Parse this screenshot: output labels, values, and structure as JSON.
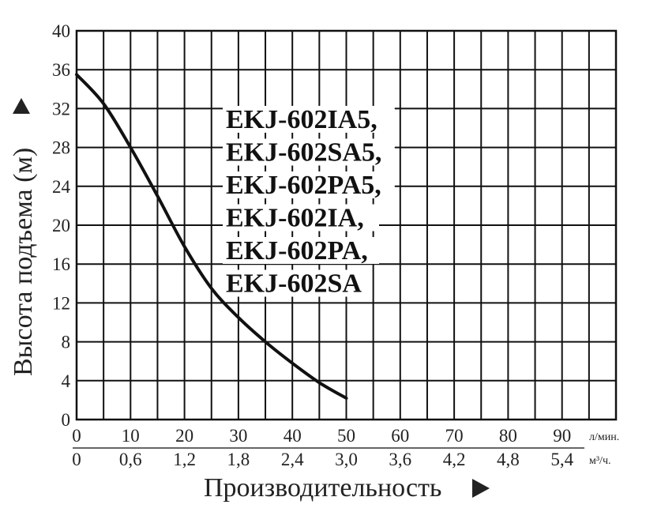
{
  "chart_data": {
    "type": "line",
    "title": "",
    "xlabel": "Производительность",
    "ylabel": "Высота подъема (м)",
    "xlim": [
      0,
      100
    ],
    "ylim": [
      0,
      40
    ],
    "grid": true,
    "x_ticks": [
      0,
      10,
      20,
      30,
      40,
      50,
      60,
      70,
      80,
      90
    ],
    "x_ticks_secondary": [
      "0",
      "0,6",
      "1,2",
      "1,8",
      "2,4",
      "3,0",
      "3,6",
      "4,2",
      "4,8",
      "5,4"
    ],
    "y_ticks": [
      0,
      4,
      8,
      12,
      16,
      20,
      24,
      28,
      32,
      36,
      40
    ],
    "x_unit": "л/мин.",
    "x_unit_secondary": "м³/ч.",
    "series": [
      {
        "name": "",
        "x": [
          0,
          5,
          10,
          15,
          20,
          25,
          30,
          35,
          40,
          45,
          50
        ],
        "y": [
          35.5,
          32.5,
          28,
          23,
          17.8,
          13.5,
          10.5,
          8,
          5.8,
          3.8,
          2.2
        ]
      }
    ],
    "annotations": [
      "EKJ-602IA5,",
      "EKJ-602SA5,",
      "EKJ-602PA5,",
      "EKJ-602IA,",
      "EKJ-602PA,",
      "EKJ-602SA"
    ],
    "colors": {
      "curve": "#111111",
      "grid": "#111111",
      "background": "#ffffff"
    }
  }
}
